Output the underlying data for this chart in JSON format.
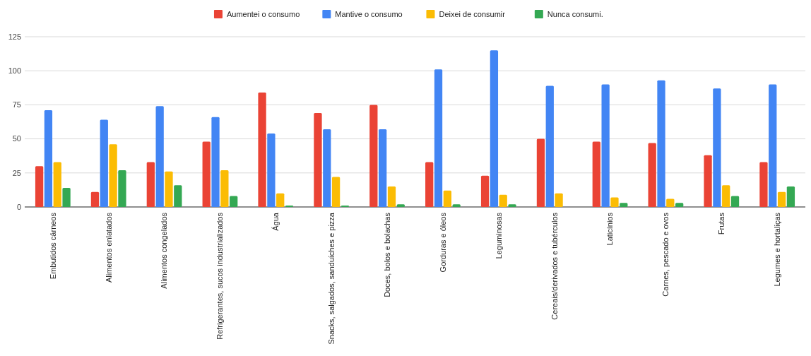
{
  "chart_data": {
    "type": "bar",
    "categories": [
      "Embutidos cárneos",
      "Alimentos enlatados",
      "Alimentos congelados",
      "Refrigerantes, sucos industrializados",
      "Água",
      "Snacks, salgados, sanduíches e pizza",
      "Doces, bolos e bolachas",
      "Gorduras e óleos",
      "Leguminosas",
      "Cereais/derivados e tubérculos",
      "Laticínios",
      "Carnes, pescado e ovos",
      "Frutas",
      "Legumes e hortaliças"
    ],
    "series": [
      {
        "name": "Aumentei o consumo",
        "color": "#ea4335",
        "values": [
          30,
          11,
          33,
          48,
          84,
          69,
          75,
          33,
          23,
          50,
          48,
          47,
          38,
          33
        ]
      },
      {
        "name": "Mantive o consumo",
        "color": "#4285f4",
        "values": [
          71,
          64,
          74,
          66,
          54,
          57,
          57,
          101,
          115,
          89,
          90,
          93,
          87,
          90
        ]
      },
      {
        "name": "Deixei de consumir",
        "color": "#fbbc04",
        "values": [
          33,
          46,
          26,
          27,
          10,
          22,
          15,
          12,
          9,
          10,
          7,
          6,
          16,
          11
        ]
      },
      {
        "name": "Nunca consumi.",
        "color": "#34a853",
        "values": [
          14,
          27,
          16,
          8,
          1,
          1,
          2,
          2,
          2,
          0,
          3,
          3,
          8,
          15
        ]
      }
    ],
    "ylim": [
      0,
      125
    ],
    "yticks": [
      0,
      25,
      50,
      75,
      100,
      125
    ],
    "grid": true,
    "legend": "top"
  }
}
